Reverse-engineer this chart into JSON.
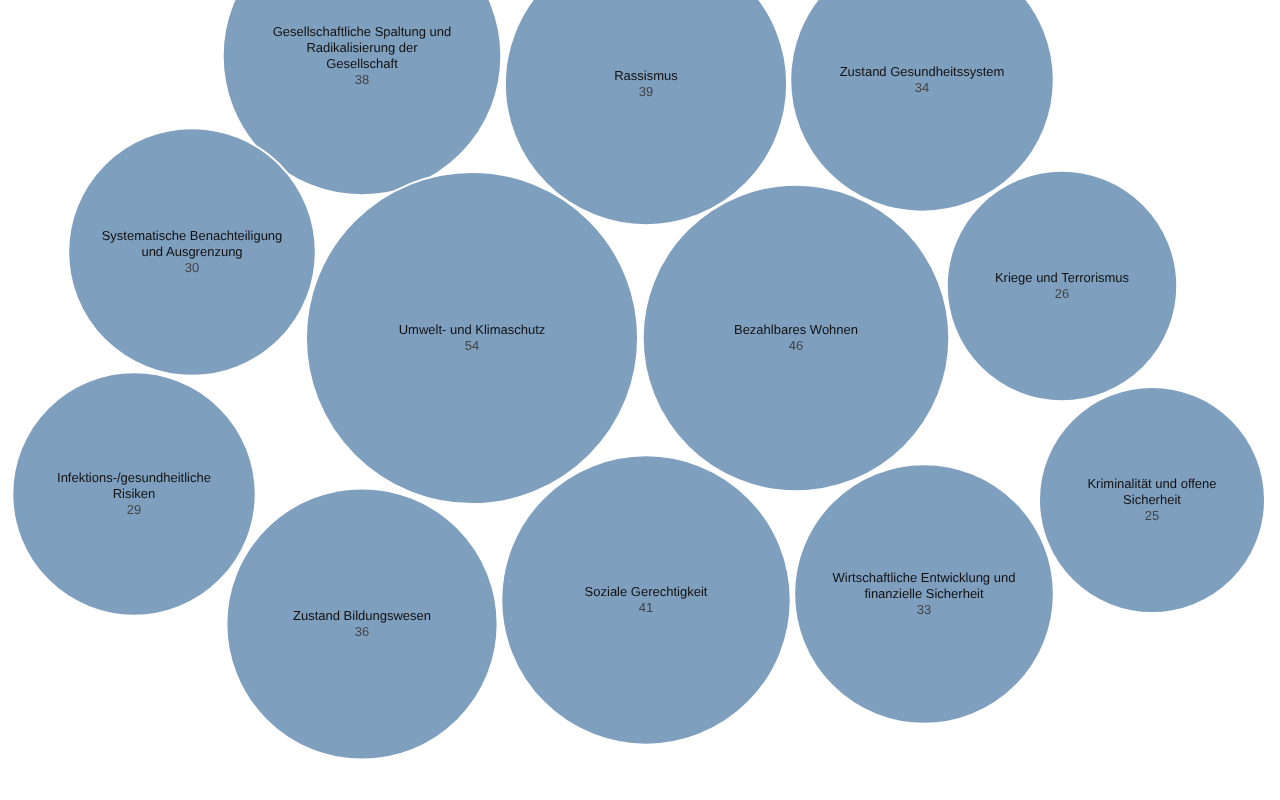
{
  "chart_data": {
    "type": "other",
    "color": "#7f9fbf",
    "categories": [
      "Gesellschaftliche Spaltung und Radikalisierung der Gesellschaft",
      "Rassismus",
      "Zustand Gesundheitssystem",
      "Systematische Benachteiligung und Ausgrenzung",
      "Umwelt- und Klimaschutz",
      "Bezahlbares Wohnen",
      "Kriege und Terrorismus",
      "Infektions-/gesundheitliche Risiken",
      "Zustand Bildungswesen",
      "Soziale Gerechtigkeit",
      "Wirtschaftliche Entwicklung und finanzielle Sicherheit",
      "Kriminalität und offene Sicherheit"
    ],
    "values": [
      38,
      39,
      34,
      30,
      54,
      46,
      26,
      29,
      36,
      41,
      33,
      25
    ],
    "data_labels": true
  }
}
